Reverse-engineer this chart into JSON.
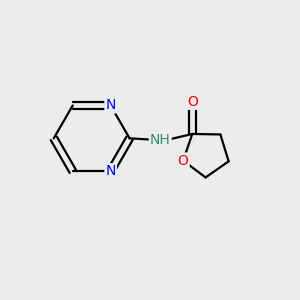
{
  "background_color": "#ececec",
  "bond_color": "#000000",
  "bond_width": 1.6,
  "atom_colors": {
    "N_pyrimidine": "#0000ff",
    "N_amide": "#2e8b7a",
    "O_carbonyl": "#ff0000",
    "O_ring": "#ff0000"
  },
  "font_size_atom": 10,
  "figsize": [
    3.0,
    3.0
  ],
  "dpi": 100,
  "xlim": [
    0,
    10
  ],
  "ylim": [
    0,
    10
  ]
}
